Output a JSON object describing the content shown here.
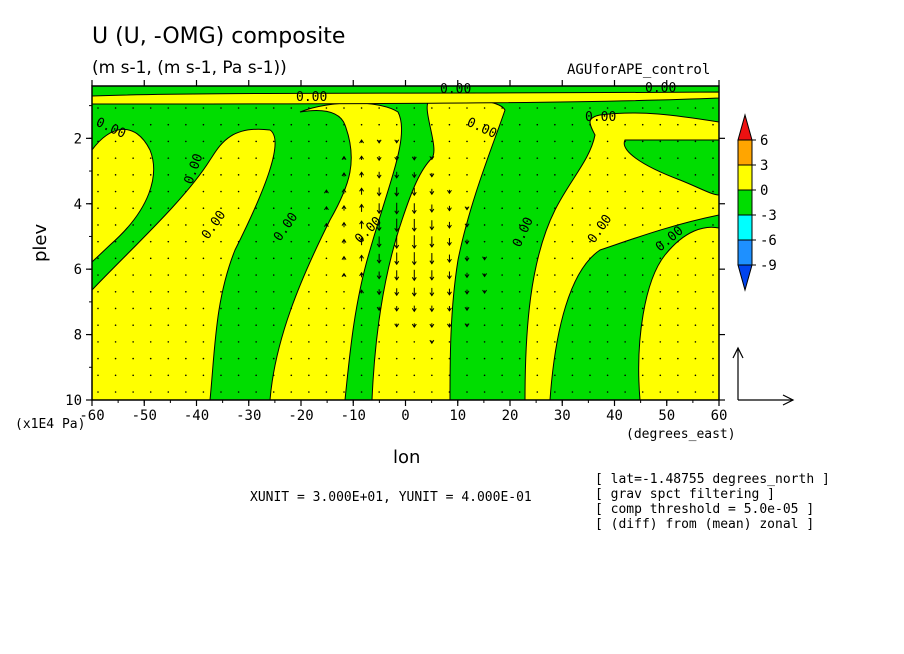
{
  "header": {
    "title": "U (U, -OMG) composite",
    "units": "(m s-1, (m s-1, Pa s-1))",
    "experiment": "AGUforAPE_control"
  },
  "chart_data": {
    "type": "contour",
    "xlabel": "lon",
    "ylabel": "plev",
    "x_unit_label": "(degrees_east)",
    "y_unit_label": "(x1E4 Pa)",
    "xlim": [
      -60,
      60
    ],
    "ylim": [
      10,
      0.4
    ],
    "x_ticks": [
      -60,
      -50,
      -40,
      -30,
      -20,
      -10,
      0,
      10,
      20,
      30,
      40,
      50,
      60
    ],
    "x_tick_labels": [
      "-60",
      "-50",
      "-40",
      "-30",
      "-20",
      "-10",
      "0",
      "10",
      "20",
      "30",
      "40",
      "50",
      "60"
    ],
    "y_ticks": [
      2,
      4,
      6,
      8,
      10
    ],
    "y_tick_labels": [
      "2",
      "4",
      "6",
      "8",
      "10"
    ],
    "contour_label": "0.00",
    "colorbar": {
      "levels": [
        "6",
        "3",
        "0",
        "-3",
        "-6",
        "-9"
      ],
      "colors": [
        "#ee1111",
        "#ffa500",
        "#ffff00",
        "#00dd00",
        "#00ffff",
        "#1e90ff",
        "#0044ee"
      ]
    },
    "vector_ref": {
      "xunit_label": "XUNIT = 3.000E+01, YUNIT = 4.000E-01"
    },
    "notes": [
      "[ lat=-1.48755 degrees_north ]",
      "[ grav spct filtering ]",
      "[ comp threshold = 5.0e-05 ]",
      "[ (diff) from (mean) zonal ]"
    ]
  }
}
